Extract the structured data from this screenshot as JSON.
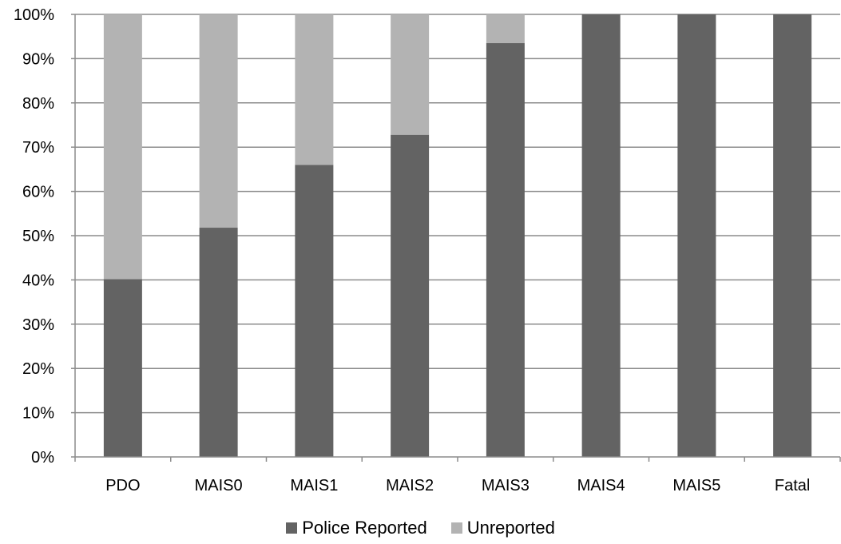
{
  "chart_data": {
    "type": "bar",
    "stacked": true,
    "categories": [
      "PDO",
      "MAIS0",
      "MAIS1",
      "MAIS2",
      "MAIS3",
      "MAIS4",
      "MAIS5",
      "Fatal"
    ],
    "series": [
      {
        "name": "Police Reported",
        "color": "#636363",
        "values": [
          40.2,
          51.8,
          66.0,
          72.8,
          93.5,
          100,
          100,
          100
        ]
      },
      {
        "name": "Unreported",
        "color": "#b3b3b3",
        "values": [
          59.8,
          48.2,
          34.0,
          27.2,
          6.5,
          0,
          0,
          0
        ]
      }
    ],
    "y_ticks": [
      "0%",
      "10%",
      "20%",
      "30%",
      "40%",
      "50%",
      "60%",
      "70%",
      "80%",
      "90%",
      "100%"
    ],
    "ylim": [
      0,
      100
    ],
    "grid": true,
    "legend_position": "bottom"
  }
}
